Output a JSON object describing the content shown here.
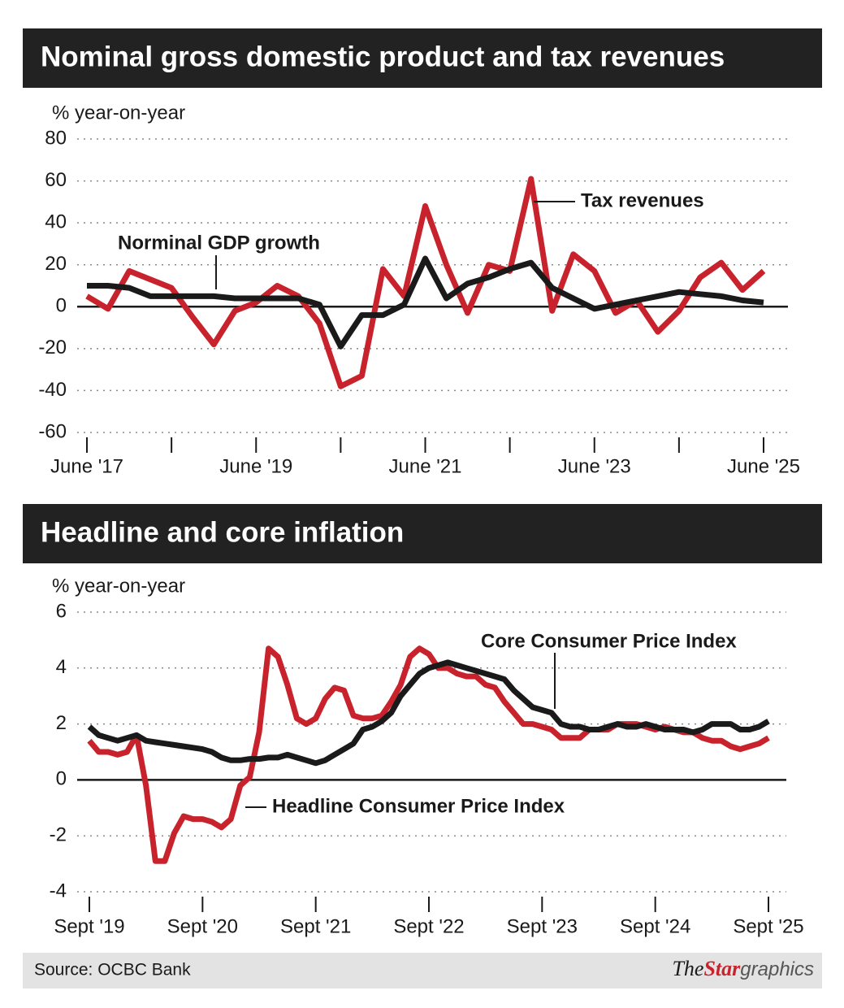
{
  "chart_data": [
    {
      "type": "line",
      "title": "Nominal gross domestic product and tax revenues",
      "y_label": "% year-on-year",
      "categories": [
        "June '17",
        null,
        null,
        null,
        null,
        null,
        null,
        null,
        "June '19",
        null,
        null,
        null,
        null,
        null,
        null,
        null,
        "June '21",
        null,
        null,
        null,
        null,
        null,
        null,
        null,
        "June '23",
        null,
        null,
        null,
        null,
        null,
        null,
        null,
        "June '25"
      ],
      "series": [
        {
          "name": "Tax revenues",
          "color": "#c8232c",
          "values": [
            5,
            -1,
            17,
            13,
            9,
            -5,
            -18,
            -2,
            2,
            10,
            5,
            -8,
            -38,
            -33,
            18,
            5,
            48,
            20,
            -3,
            20,
            17,
            61,
            -2,
            25,
            17,
            -3,
            3,
            -12,
            -2,
            14,
            21,
            8,
            17
          ]
        },
        {
          "name": "Norminal GDP growth",
          "color": "#1a1a1a",
          "values": [
            10,
            10,
            9,
            5,
            5,
            5,
            5,
            4,
            4,
            4,
            4,
            1,
            -19,
            -4,
            -4,
            1,
            23,
            4,
            11,
            14,
            18,
            21,
            9,
            4,
            -1,
            1,
            3,
            5,
            7,
            6,
            5,
            3,
            2
          ]
        }
      ],
      "ylim": [
        -60,
        80
      ],
      "yticks": [
        -60,
        -40,
        -20,
        0,
        20,
        40,
        60,
        80
      ],
      "grid": true
    },
    {
      "type": "line",
      "title": "Headline and core inflation",
      "y_label": "% year-on-year",
      "categories": [
        "Sept '19",
        null,
        null,
        null,
        null,
        null,
        null,
        null,
        null,
        null,
        null,
        null,
        "Sept '20",
        null,
        null,
        null,
        null,
        null,
        null,
        null,
        null,
        null,
        null,
        null,
        "Sept '21",
        null,
        null,
        null,
        null,
        null,
        null,
        null,
        null,
        null,
        null,
        null,
        "Sept '22",
        null,
        null,
        null,
        null,
        null,
        null,
        null,
        null,
        null,
        null,
        null,
        "Sept '23",
        null,
        null,
        null,
        null,
        null,
        null,
        null,
        null,
        null,
        null,
        null,
        "Sept '24",
        null,
        null,
        null,
        null,
        null,
        null,
        null,
        null,
        null,
        null,
        null,
        "Sept '25"
      ],
      "series": [
        {
          "name": "Headline Consumer Price Index",
          "color": "#c8232c",
          "values": [
            1.4,
            1.0,
            1.0,
            0.9,
            1.0,
            1.6,
            -0.2,
            -2.9,
            -2.9,
            -1.9,
            -1.3,
            -1.4,
            -1.4,
            -1.5,
            -1.7,
            -1.4,
            -0.2,
            0.1,
            1.7,
            4.7,
            4.4,
            3.4,
            2.2,
            2.0,
            2.2,
            2.9,
            3.3,
            3.2,
            2.3,
            2.2,
            2.2,
            2.3,
            2.8,
            3.4,
            4.4,
            4.7,
            4.5,
            4.0,
            4.0,
            3.8,
            3.7,
            3.7,
            3.4,
            3.3,
            2.8,
            2.4,
            2.0,
            2.0,
            1.9,
            1.8,
            1.5,
            1.5,
            1.5,
            1.8,
            1.8,
            1.8,
            2.0,
            2.0,
            2.0,
            1.9,
            1.8,
            1.9,
            1.8,
            1.7,
            1.7,
            1.5,
            1.4,
            1.4,
            1.2,
            1.1,
            1.2,
            1.3,
            1.5
          ]
        },
        {
          "name": "Core Consumer Price Index",
          "color": "#1a1a1a",
          "values": [
            1.9,
            1.6,
            1.5,
            1.4,
            1.5,
            1.6,
            1.4,
            1.35,
            1.3,
            1.25,
            1.2,
            1.15,
            1.1,
            1.0,
            0.8,
            0.7,
            0.7,
            0.75,
            0.75,
            0.8,
            0.8,
            0.9,
            0.8,
            0.7,
            0.6,
            0.7,
            0.9,
            1.1,
            1.3,
            1.8,
            1.9,
            2.1,
            2.4,
            3.0,
            3.4,
            3.8,
            4.0,
            4.1,
            4.2,
            4.1,
            4.0,
            3.9,
            3.8,
            3.7,
            3.6,
            3.2,
            2.9,
            2.6,
            2.5,
            2.4,
            2.0,
            1.9,
            1.9,
            1.8,
            1.8,
            1.9,
            2.0,
            1.9,
            1.9,
            2.0,
            1.9,
            1.8,
            1.8,
            1.8,
            1.7,
            1.8,
            2.0,
            2.0,
            2.0,
            1.8,
            1.8,
            1.9,
            2.1
          ]
        }
      ],
      "ylim": [
        -4,
        6
      ],
      "yticks": [
        -4,
        -2,
        0,
        2,
        4,
        6
      ],
      "grid": true
    }
  ],
  "source": "Source: OCBC Bank",
  "credit": {
    "the": "The",
    "star": "Star",
    "graphics": "graphics"
  }
}
